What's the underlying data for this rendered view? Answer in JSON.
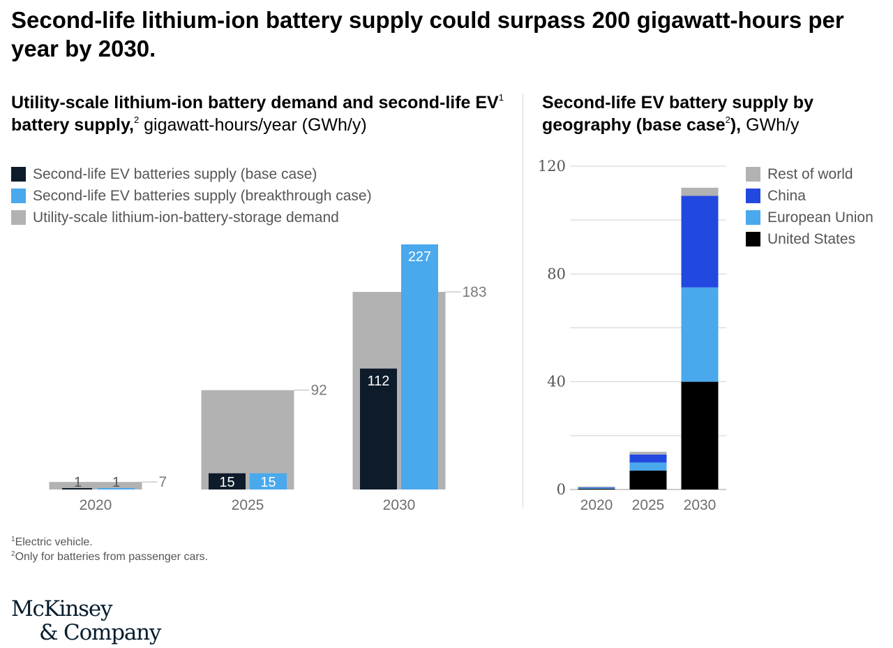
{
  "title": "Second-life lithium-ion battery supply could surpass 200 gigawatt-hours per year by 2030.",
  "colors": {
    "navy": "#0d1b2a",
    "sky": "#4aa8ec",
    "grey": "#b2b2b2",
    "royal": "#2348e0",
    "black": "#000000",
    "text_grey": "#6e6e6e"
  },
  "chart_data": [
    {
      "type": "bar",
      "title_bold": "Utility-scale lithium-ion battery demand and second-life EV",
      "title_sup1": "1",
      "title_bold2": " battery supply,",
      "title_sup2": "2",
      "title_unit": " gigawatt-hours/year (GWh/y)",
      "categories": [
        "2020",
        "2025",
        "2030"
      ],
      "series": [
        {
          "name": "Second-life EV batteries supply (base case)",
          "color": "#0d1b2a",
          "values": [
            1,
            15,
            112
          ]
        },
        {
          "name": "Second-life EV batteries supply (breakthrough case)",
          "color": "#4aa8ec",
          "values": [
            1,
            15,
            227
          ]
        },
        {
          "name": "Utility-scale lithium-ion-battery-storage demand",
          "color": "#b2b2b2",
          "values": [
            7,
            92,
            183
          ]
        }
      ],
      "data_labels": {
        "base": [
          "1",
          "15",
          "112"
        ],
        "breakthrough": [
          "1",
          "15",
          "227"
        ],
        "demand": [
          "7",
          "92",
          "183"
        ]
      },
      "ylim": [
        0,
        227
      ],
      "grid": false,
      "legend": "top-left"
    },
    {
      "type": "bar",
      "stacked": true,
      "title_bold": "Second-life EV battery supply by geography (base case",
      "title_sup": "2",
      "title_bold2": "),",
      "title_unit": " GWh/y",
      "categories": [
        "2020",
        "2025",
        "2030"
      ],
      "series": [
        {
          "name": "United States",
          "color": "#000000",
          "values": [
            0.3,
            7,
            40
          ]
        },
        {
          "name": "European Union",
          "color": "#4aa8ec",
          "values": [
            0.3,
            3,
            35
          ]
        },
        {
          "name": "China",
          "color": "#2348e0",
          "values": [
            0.2,
            3,
            34
          ]
        },
        {
          "name": "Rest of world",
          "color": "#b2b2b2",
          "values": [
            0.3,
            1,
            3
          ]
        }
      ],
      "legend_order": [
        "Rest of world",
        "China",
        "European Union",
        "United States"
      ],
      "yticks": [
        "0",
        "40",
        "80",
        "120"
      ],
      "ylim": [
        0,
        120
      ],
      "grid": true,
      "legend": "right"
    }
  ],
  "footnotes": {
    "n1_mark": "1",
    "n1_text": "Electric vehicle.",
    "n2_mark": "2",
    "n2_text": "Only for batteries from passenger cars."
  },
  "logo": {
    "line1": "McKinsey",
    "line2": "& Company"
  }
}
